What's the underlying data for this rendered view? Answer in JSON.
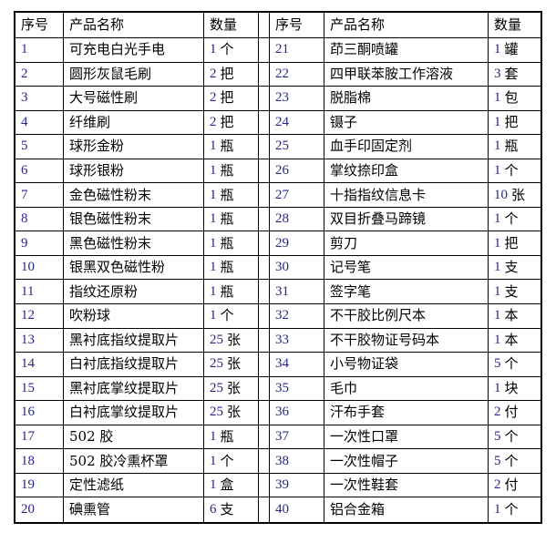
{
  "table": {
    "columns": [
      "序号",
      "产品名称",
      "数量"
    ],
    "left": [
      {
        "no": "1",
        "name": "可充电白光手电",
        "qty": "1",
        "unit": "个"
      },
      {
        "no": "2",
        "name": "圆形灰鼠毛刷",
        "qty": "2",
        "unit": "把"
      },
      {
        "no": "3",
        "name": "大号磁性刷",
        "qty": "2",
        "unit": "把"
      },
      {
        "no": "4",
        "name": "纤维刷",
        "qty": "2",
        "unit": "把"
      },
      {
        "no": "5",
        "name": "球形金粉",
        "qty": "1",
        "unit": "瓶"
      },
      {
        "no": "6",
        "name": "球形银粉",
        "qty": "1",
        "unit": "瓶"
      },
      {
        "no": "7",
        "name": "金色磁性粉末",
        "qty": "1",
        "unit": "瓶"
      },
      {
        "no": "8",
        "name": "银色磁性粉末",
        "qty": "1",
        "unit": "瓶"
      },
      {
        "no": "9",
        "name": "黑色磁性粉末",
        "qty": "1",
        "unit": "瓶"
      },
      {
        "no": "10",
        "name": "银黑双色磁性粉",
        "qty": "1",
        "unit": "瓶"
      },
      {
        "no": "11",
        "name": "指纹还原粉",
        "qty": "1",
        "unit": "瓶"
      },
      {
        "no": "12",
        "name": "吹粉球",
        "qty": "1",
        "unit": "个"
      },
      {
        "no": "13",
        "name": "黑衬底指纹提取片",
        "qty": "25",
        "unit": "张"
      },
      {
        "no": "14",
        "name": "白衬底指纹提取片",
        "qty": "25",
        "unit": "张"
      },
      {
        "no": "15",
        "name": "黑衬底掌纹提取片",
        "qty": "25",
        "unit": "张"
      },
      {
        "no": "16",
        "name": "白衬底掌纹提取片",
        "qty": "25",
        "unit": "张"
      },
      {
        "no": "17",
        "name": "502 胶",
        "qty": "1",
        "unit": "瓶"
      },
      {
        "no": "18",
        "name": "502 胶冷熏杯罩",
        "qty": "1",
        "unit": "个"
      },
      {
        "no": "19",
        "name": "定性滤纸",
        "qty": "1",
        "unit": "盒"
      },
      {
        "no": "20",
        "name": "碘熏管",
        "qty": "6",
        "unit": "支"
      }
    ],
    "right": [
      {
        "no": "21",
        "name": "茚三酮喷罐",
        "qty": "1",
        "unit": "罐"
      },
      {
        "no": "22",
        "name": "四甲联苯胺工作溶液",
        "qty": "3",
        "unit": "套"
      },
      {
        "no": "23",
        "name": "脱脂棉",
        "qty": "1",
        "unit": "包"
      },
      {
        "no": "24",
        "name": "镊子",
        "qty": "1",
        "unit": "把"
      },
      {
        "no": "25",
        "name": "血手印固定剂",
        "qty": "1",
        "unit": "瓶"
      },
      {
        "no": "26",
        "name": "掌纹捺印盒",
        "qty": "1",
        "unit": "个"
      },
      {
        "no": "27",
        "name": "十指指纹信息卡",
        "qty": "10",
        "unit": "张"
      },
      {
        "no": "28",
        "name": "双目折叠马蹄镜",
        "qty": "1",
        "unit": "个"
      },
      {
        "no": "29",
        "name": "剪刀",
        "qty": "1",
        "unit": "把"
      },
      {
        "no": "30",
        "name": "记号笔",
        "qty": "1",
        "unit": "支"
      },
      {
        "no": "31",
        "name": "签字笔",
        "qty": "1",
        "unit": "支"
      },
      {
        "no": "32",
        "name": "不干胶比例尺本",
        "qty": "1",
        "unit": "本"
      },
      {
        "no": "33",
        "name": "不干胶物证号码本",
        "qty": "1",
        "unit": "本"
      },
      {
        "no": "34",
        "name": "小号物证袋",
        "qty": "5",
        "unit": "个"
      },
      {
        "no": "35",
        "name": "毛巾",
        "qty": "1",
        "unit": "块"
      },
      {
        "no": "36",
        "name": "汗布手套",
        "qty": "2",
        "unit": "付"
      },
      {
        "no": "37",
        "name": "一次性口罩",
        "qty": "5",
        "unit": "个"
      },
      {
        "no": "38",
        "name": "一次性帽子",
        "qty": "5",
        "unit": "个"
      },
      {
        "no": "39",
        "name": "一次性鞋套",
        "qty": "2",
        "unit": "付"
      },
      {
        "no": "40",
        "name": "铝合金箱",
        "qty": "1",
        "unit": "个"
      }
    ]
  }
}
